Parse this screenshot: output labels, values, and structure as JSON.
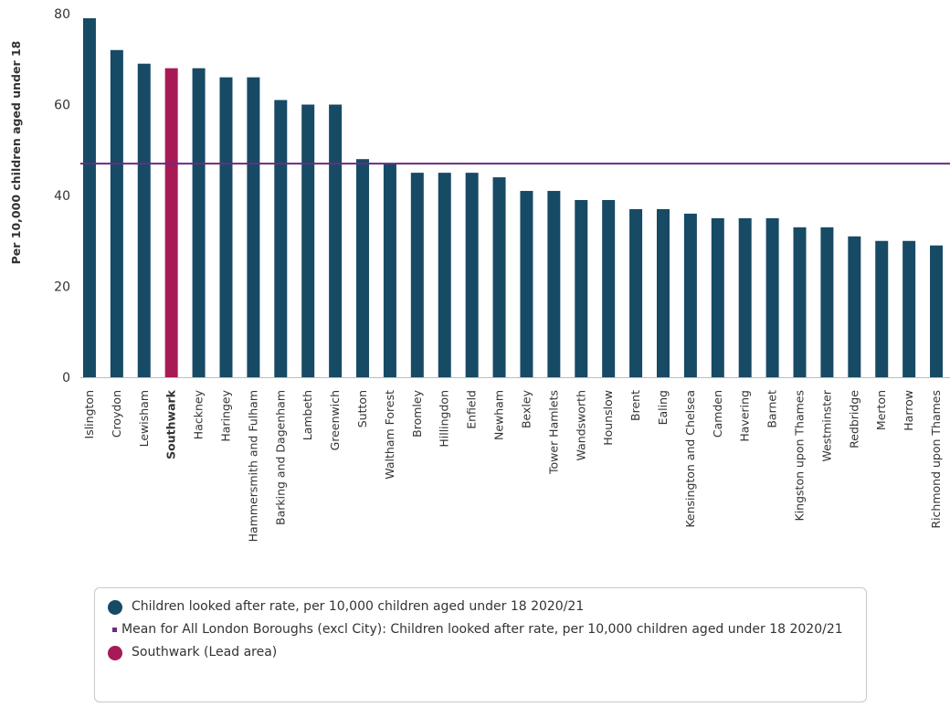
{
  "chart_data": {
    "type": "bar",
    "ylabel": "Per 10,000 children aged under 18",
    "ylim": [
      0,
      80
    ],
    "yticks": [
      0,
      20,
      40,
      60,
      80
    ],
    "highlight_category": "Southwark",
    "categories": [
      "Islington",
      "Croydon",
      "Lewisham",
      "Southwark",
      "Hackney",
      "Haringey",
      "Hammersmith and Fulham",
      "Barking and Dagenham",
      "Lambeth",
      "Greenwich",
      "Sutton",
      "Waltham Forest",
      "Bromley",
      "Hillingdon",
      "Enfield",
      "Newham",
      "Bexley",
      "Tower Hamlets",
      "Wandsworth",
      "Hounslow",
      "Brent",
      "Ealing",
      "Kensington and Chelsea",
      "Camden",
      "Havering",
      "Barnet",
      "Kingston upon Thames",
      "Westminster",
      "Redbridge",
      "Merton",
      "Harrow",
      "Richmond upon Thames"
    ],
    "series": [
      {
        "name": "Children looked after rate, per 10,000 children aged under 18 2020/21",
        "values": [
          79,
          72,
          69,
          68,
          68,
          66,
          66,
          61,
          60,
          60,
          48,
          47,
          45,
          45,
          45,
          44,
          41,
          41,
          39,
          39,
          37,
          37,
          36,
          35,
          35,
          35,
          33,
          33,
          31,
          30,
          30,
          29
        ]
      }
    ],
    "mean_line": {
      "name": "Mean for All London Boroughs (excl City): Children looked after rate, per 10,000 children aged under 18 2020/21",
      "value": 47
    },
    "grid": false,
    "legend_position": "bottom"
  },
  "colors": {
    "bar": "#174a65",
    "highlight": "#a71a56",
    "mean_line": "#6a2c80",
    "axis": "#bdbdbd"
  },
  "legend": {
    "items": [
      {
        "label": "Children looked after rate, per 10,000 children aged under 18 2020/21",
        "marker": "circle",
        "color": "#174a65"
      },
      {
        "label": "Mean for All London Boroughs (excl City): Children looked after rate, per 10,000 children aged under 18 2020/21",
        "marker": "square",
        "color": "#6a2c80"
      },
      {
        "label": "Southwark (Lead area)",
        "marker": "circle",
        "color": "#a71a56"
      }
    ]
  }
}
